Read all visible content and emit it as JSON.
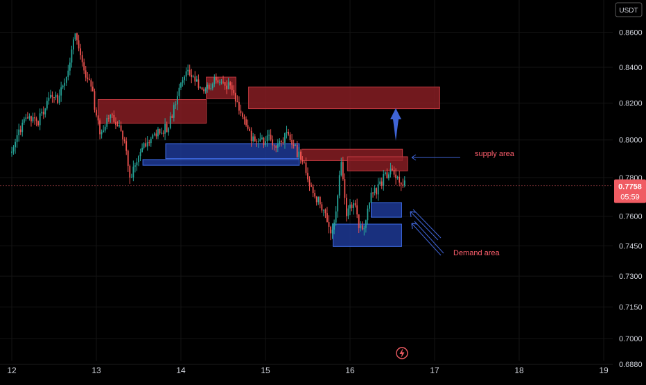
{
  "currency_label": "USDT",
  "price": {
    "value": "0.7758",
    "countdown": "05:59"
  },
  "colors": {
    "background": "#000000",
    "grid": "#141414",
    "axis_text": "#d1d4dc",
    "up_candle": "#26a69a",
    "down_candle": "#ef5350",
    "supply_fill": "#8b1f24",
    "supply_stroke": "#c0393f",
    "demand_fill": "#1e3a9a",
    "demand_stroke": "#3f6ee8",
    "annotation_text": "#ff5f6d",
    "arrow": "#3f64d6",
    "price_tag": "#f05c63",
    "price_line": "#6b2a2e"
  },
  "chart_data": {
    "type": "candlestick",
    "x_axis": {
      "ticks": [
        "12",
        "13",
        "14",
        "15",
        "16",
        "17",
        "18",
        "19"
      ],
      "range": [
        12.0,
        19.15
      ]
    },
    "y_axis": {
      "ticks": [
        "0.8600",
        "0.8400",
        "0.8200",
        "0.8000",
        "0.7800",
        "0.7600",
        "0.7450",
        "0.7300",
        "0.7150",
        "0.7000",
        "0.6880"
      ],
      "scale": "log"
    },
    "price_path": [
      [
        12.0,
        0.793
      ],
      [
        12.15,
        0.812
      ],
      [
        12.3,
        0.809
      ],
      [
        12.45,
        0.822
      ],
      [
        12.55,
        0.822
      ],
      [
        12.65,
        0.835
      ],
      [
        12.75,
        0.858
      ],
      [
        12.85,
        0.838
      ],
      [
        12.95,
        0.827
      ],
      [
        13.05,
        0.8
      ],
      [
        13.15,
        0.815
      ],
      [
        13.3,
        0.806
      ],
      [
        13.4,
        0.78
      ],
      [
        13.5,
        0.79
      ],
      [
        13.6,
        0.8
      ],
      [
        13.75,
        0.805
      ],
      [
        13.85,
        0.807
      ],
      [
        13.95,
        0.823
      ],
      [
        14.05,
        0.838
      ],
      [
        14.15,
        0.835
      ],
      [
        14.25,
        0.828
      ],
      [
        14.35,
        0.83
      ],
      [
        14.45,
        0.834
      ],
      [
        14.55,
        0.83
      ],
      [
        14.65,
        0.822
      ],
      [
        14.75,
        0.811
      ],
      [
        14.85,
        0.8
      ],
      [
        14.95,
        0.799
      ],
      [
        15.05,
        0.801
      ],
      [
        15.15,
        0.796
      ],
      [
        15.25,
        0.803
      ],
      [
        15.35,
        0.795
      ],
      [
        15.45,
        0.787
      ],
      [
        15.55,
        0.772
      ],
      [
        15.65,
        0.766
      ],
      [
        15.8,
        0.75
      ],
      [
        15.9,
        0.791
      ],
      [
        15.95,
        0.76
      ],
      [
        16.05,
        0.769
      ],
      [
        16.1,
        0.756
      ],
      [
        16.15,
        0.752
      ],
      [
        16.25,
        0.77
      ],
      [
        16.35,
        0.776
      ],
      [
        16.45,
        0.783
      ],
      [
        16.55,
        0.782
      ],
      [
        16.65,
        0.7758
      ]
    ],
    "supply_zones": [
      {
        "x_start": 13.02,
        "x_end": 14.3,
        "y_low": 0.809,
        "y_high": 0.822
      },
      {
        "x_start": 14.3,
        "x_end": 14.65,
        "y_low": 0.8225,
        "y_high": 0.8345
      },
      {
        "x_start": 14.8,
        "x_end": 17.06,
        "y_low": 0.817,
        "y_high": 0.829
      },
      {
        "x_start": 15.43,
        "x_end": 16.62,
        "y_low": 0.789,
        "y_high": 0.795
      },
      {
        "x_start": 15.97,
        "x_end": 16.68,
        "y_low": 0.7835,
        "y_high": 0.791
      }
    ],
    "demand_zones": [
      {
        "x_start": 13.82,
        "x_end": 15.4,
        "y_low": 0.79,
        "y_high": 0.798
      },
      {
        "x_start": 13.55,
        "x_end": 15.4,
        "y_low": 0.7865,
        "y_high": 0.7895
      },
      {
        "x_start": 16.25,
        "x_end": 16.61,
        "y_low": 0.7595,
        "y_high": 0.767
      },
      {
        "x_start": 15.8,
        "x_end": 16.61,
        "y_low": 0.7447,
        "y_high": 0.756
      }
    ],
    "annotations": [
      {
        "text": "supply area"
      },
      {
        "text": "Demand area"
      }
    ]
  }
}
